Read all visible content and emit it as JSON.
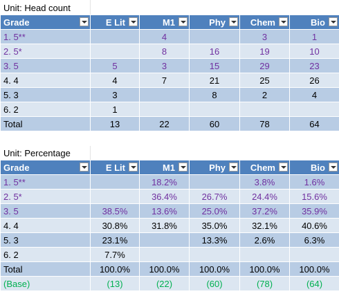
{
  "colors": {
    "header_bg": "#4f81bd",
    "row_dark": "#b8cce4",
    "row_light": "#dce6f1",
    "purple_text": "#7030a0",
    "green_text": "#00b050"
  },
  "icons": {
    "filter_dropdown": "chevron-down-icon"
  },
  "headcount": {
    "title": "Unit: Head count",
    "headers": [
      "Grade",
      "E Lit",
      "M1",
      "Phy",
      "Chem",
      "Bio"
    ],
    "rows": [
      {
        "grade": "1. 5**",
        "E Lit": "",
        "M1": "4",
        "Phy": "",
        "Chem": "3",
        "Bio": "1"
      },
      {
        "grade": "2. 5*",
        "E Lit": "",
        "M1": "8",
        "Phy": "16",
        "Chem": "19",
        "Bio": "10"
      },
      {
        "grade": "3. 5",
        "E Lit": "5",
        "M1": "3",
        "Phy": "15",
        "Chem": "29",
        "Bio": "23"
      },
      {
        "grade": "4. 4",
        "E Lit": "4",
        "M1": "7",
        "Phy": "21",
        "Chem": "25",
        "Bio": "26"
      },
      {
        "grade": "5. 3",
        "E Lit": "3",
        "M1": "",
        "Phy": "8",
        "Chem": "2",
        "Bio": "4"
      },
      {
        "grade": "6. 2",
        "E Lit": "1",
        "M1": "",
        "Phy": "",
        "Chem": "",
        "Bio": ""
      }
    ],
    "total": {
      "label": "Total",
      "E Lit": "13",
      "M1": "22",
      "Phy": "60",
      "Chem": "78",
      "Bio": "64"
    }
  },
  "percentage": {
    "title": "Unit: Percentage",
    "headers": [
      "Grade",
      "E Lit",
      "M1",
      "Phy",
      "Chem",
      "Bio"
    ],
    "rows": [
      {
        "grade": "1. 5**",
        "E Lit": "",
        "M1": "18.2%",
        "Phy": "",
        "Chem": "3.8%",
        "Bio": "1.6%"
      },
      {
        "grade": "2. 5*",
        "E Lit": "",
        "M1": "36.4%",
        "Phy": "26.7%",
        "Chem": "24.4%",
        "Bio": "15.6%"
      },
      {
        "grade": "3. 5",
        "E Lit": "38.5%",
        "M1": "13.6%",
        "Phy": "25.0%",
        "Chem": "37.2%",
        "Bio": "35.9%"
      },
      {
        "grade": "4. 4",
        "E Lit": "30.8%",
        "M1": "31.8%",
        "Phy": "35.0%",
        "Chem": "32.1%",
        "Bio": "40.6%"
      },
      {
        "grade": "5. 3",
        "E Lit": "23.1%",
        "M1": "",
        "Phy": "13.3%",
        "Chem": "2.6%",
        "Bio": "6.3%"
      },
      {
        "grade": "6. 2",
        "E Lit": "7.7%",
        "M1": "",
        "Phy": "",
        "Chem": "",
        "Bio": ""
      }
    ],
    "total": {
      "label": "Total",
      "E Lit": "100.0%",
      "M1": "100.0%",
      "Phy": "100.0%",
      "Chem": "100.0%",
      "Bio": "100.0%"
    },
    "base": {
      "label": "(Base)",
      "E Lit": "(13)",
      "M1": "(22)",
      "Phy": "(60)",
      "Chem": "(78)",
      "Bio": "(64)"
    }
  }
}
